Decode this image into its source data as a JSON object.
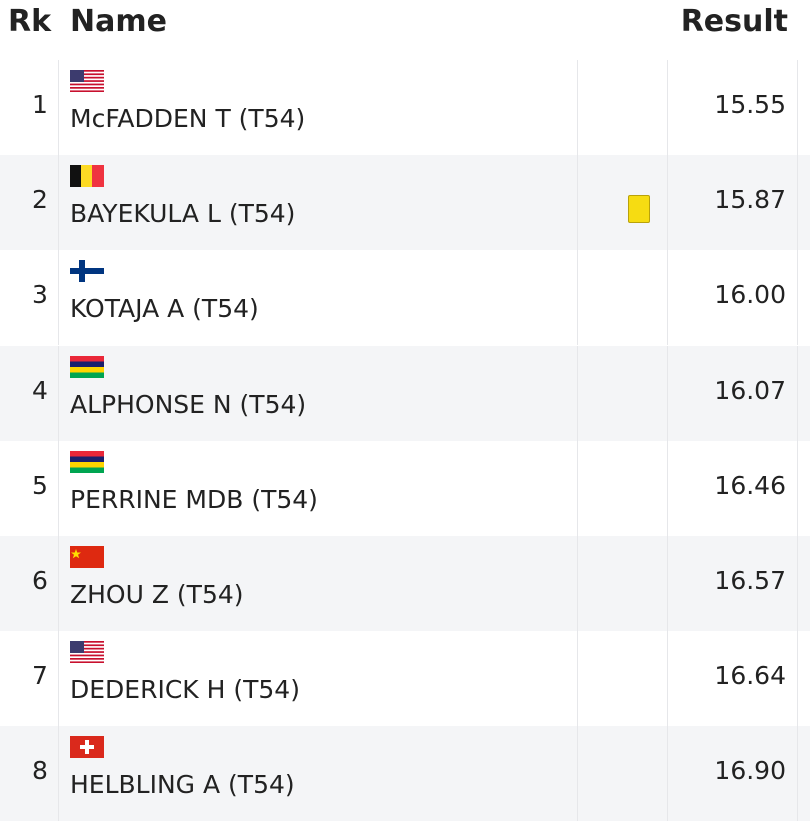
{
  "header": {
    "rank": "Rk",
    "name": "Name",
    "result": "Result"
  },
  "table": {
    "rows": [
      [
        "1",
        "McFADDEN T (T54)",
        "15.55"
      ],
      [
        "2",
        "BAYEKULA L (T54)",
        "15.87"
      ],
      [
        "3",
        "KOTAJA A (T54)",
        "16.00"
      ],
      [
        "4",
        "ALPHONSE N (T54)",
        "16.07"
      ],
      [
        "5",
        "PERRINE MDB (T54)",
        "16.46"
      ],
      [
        "6",
        "ZHOU Z (T54)",
        "16.57"
      ],
      [
        "7",
        "DEDERICK H (T54)",
        "16.64"
      ],
      [
        "8",
        "HELBLING A (T54)",
        "16.90"
      ]
    ]
  }
}
